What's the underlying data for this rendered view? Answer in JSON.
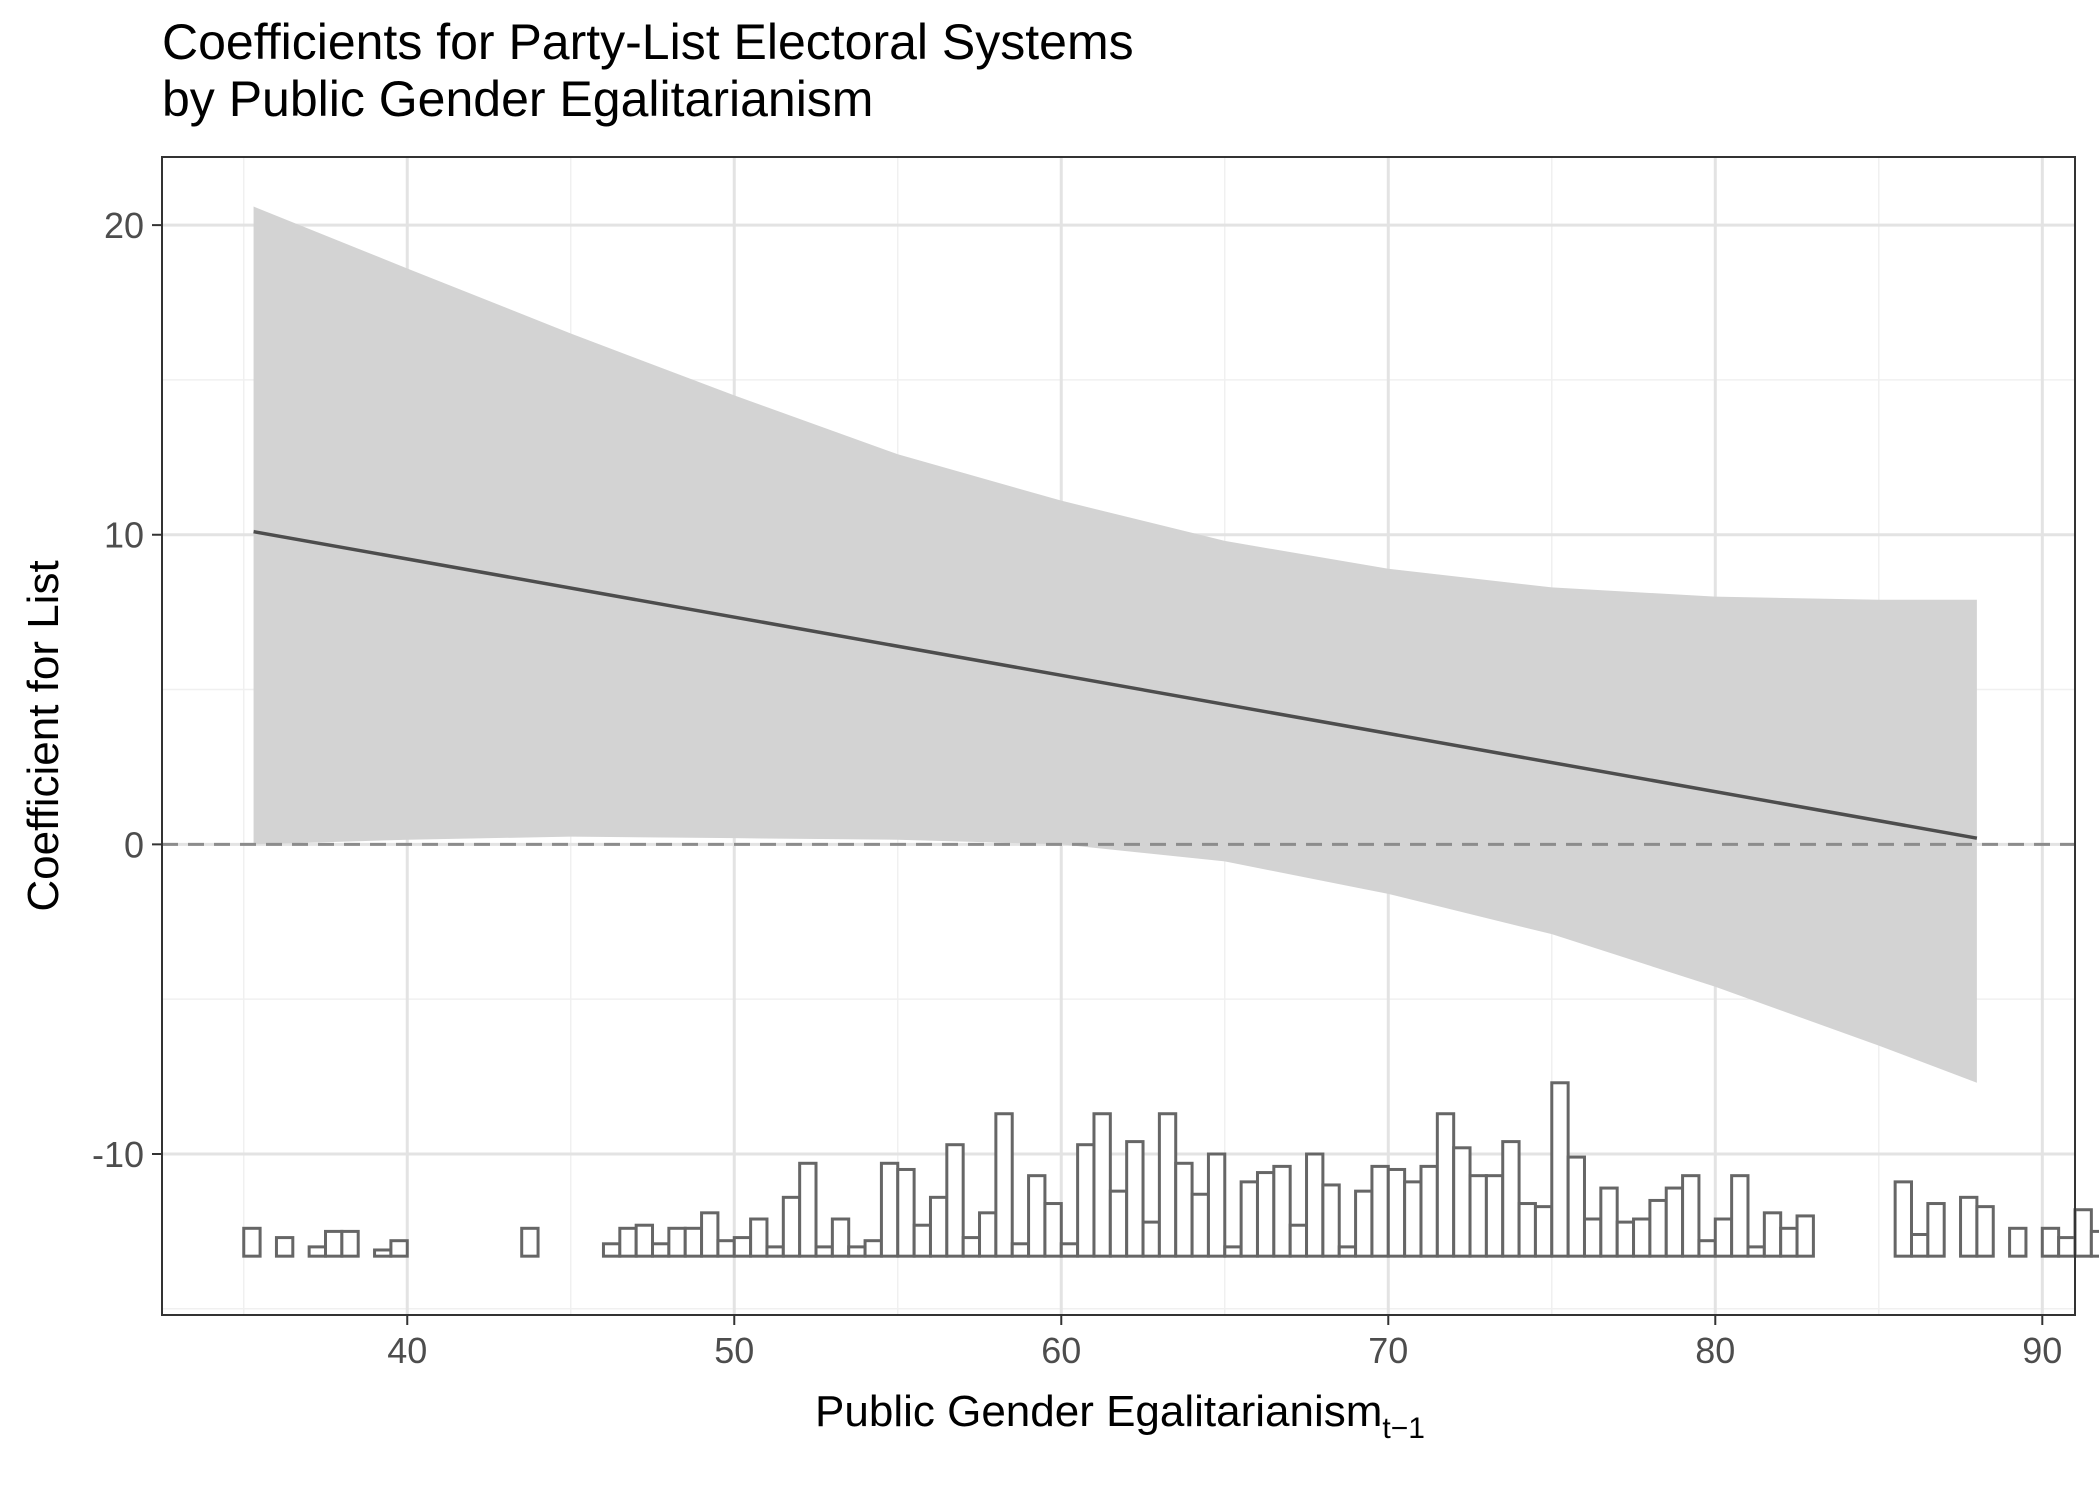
{
  "chart_data": {
    "type": "line",
    "title": "Coefficients for Party-List Electoral Systems",
    "subtitle": "by Public Gender Egalitarianism",
    "xlabel": "Public Gender Egalitarianism",
    "xlabel_subscript": "t−1",
    "ylabel": "Coefficient for List",
    "xlim": [
      32.5,
      91.0
    ],
    "ylim": [
      -15.2,
      22.2
    ],
    "x_ticks": [
      40,
      50,
      60,
      70,
      80,
      90
    ],
    "y_ticks": [
      20,
      10,
      0,
      -10
    ],
    "y_tick_labels": [
      "20",
      "10",
      "0",
      "-10"
    ],
    "grid": true,
    "reference_line": {
      "y": 0,
      "style": "dashed"
    },
    "series": [
      {
        "type": "line",
        "x": [
          35.3,
          88.0
        ],
        "y": [
          10.1,
          0.2
        ]
      }
    ],
    "band": {
      "x": [
        35.3,
        40,
        45,
        50,
        55,
        60,
        65,
        70,
        75,
        80,
        85,
        88.0
      ],
      "lower": [
        0.0,
        0.15,
        0.25,
        0.2,
        0.15,
        0.0,
        -0.55,
        -1.6,
        -2.9,
        -4.6,
        -6.5,
        -7.7
      ],
      "upper": [
        20.6,
        18.6,
        16.5,
        14.5,
        12.6,
        11.1,
        9.8,
        8.9,
        8.3,
        8.0,
        7.9,
        7.9
      ]
    },
    "histogram": {
      "baseline": -13.3,
      "bin_start": 35.0,
      "bin_width": 0.5,
      "heights": [
        0.9,
        0,
        0.6,
        0,
        0.3,
        0.8,
        0.8,
        0,
        0.2,
        0.5,
        0,
        0,
        0,
        0,
        0,
        0,
        0,
        0.9,
        0,
        0,
        0,
        0,
        0.4,
        0.9,
        1.0,
        0.4,
        0.9,
        0.9,
        1.4,
        0.5,
        0.6,
        1.2,
        0.3,
        1.9,
        3.0,
        0.3,
        1.2,
        0.3,
        0.5,
        3.0,
        2.8,
        1.0,
        1.9,
        3.6,
        0.6,
        1.4,
        4.6,
        0.4,
        2.6,
        1.7,
        0.4,
        3.6,
        4.6,
        2.1,
        3.7,
        1.1,
        4.6,
        3.0,
        2.0,
        3.3,
        0.3,
        2.4,
        2.7,
        2.9,
        1.0,
        3.3,
        2.3,
        0.3,
        2.1,
        2.9,
        2.8,
        2.4,
        2.9,
        4.6,
        3.5,
        2.6,
        2.6,
        3.7,
        1.7,
        1.6,
        5.6,
        3.2,
        1.2,
        2.2,
        1.1,
        1.2,
        1.8,
        2.2,
        2.6,
        0.5,
        1.2,
        2.6,
        0.3,
        1.4,
        0.9,
        1.3,
        0,
        0,
        0,
        0,
        0,
        2.4,
        0.7,
        1.7,
        0,
        1.9,
        1.6,
        0,
        0.9,
        0,
        0.9,
        0.6,
        1.5,
        0.8,
        0.7
      ]
    }
  }
}
